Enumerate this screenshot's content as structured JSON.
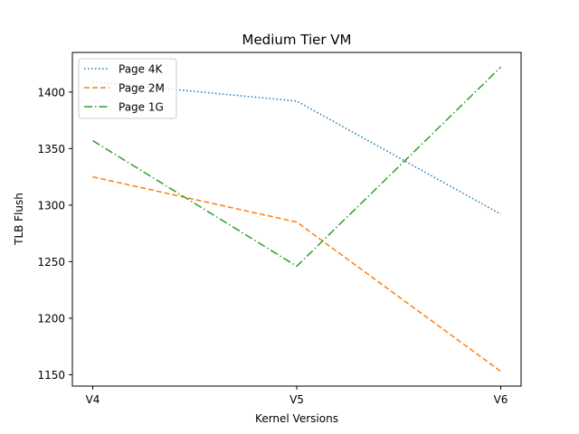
{
  "chart_data": {
    "type": "line",
    "title": "Medium Tier VM",
    "xlabel": "Kernel Versions",
    "ylabel": "TLB Flush",
    "categories": [
      "V4",
      "V5",
      "V6"
    ],
    "ylim": [
      1140,
      1435
    ],
    "yticks": [
      1150,
      1200,
      1250,
      1300,
      1350,
      1400
    ],
    "legend_position": "top-left",
    "grid": false,
    "series": [
      {
        "name": "Page 4K",
        "values": [
          1409,
          1392,
          1292
        ],
        "color": "#1f77b4",
        "linestyle": "dotted"
      },
      {
        "name": "Page 2M",
        "values": [
          1325,
          1285,
          1153
        ],
        "color": "#ff7f0e",
        "linestyle": "dashed"
      },
      {
        "name": "Page 1G",
        "values": [
          1357,
          1246,
          1422
        ],
        "color": "#2ca02c",
        "linestyle": "dashdot"
      }
    ]
  }
}
